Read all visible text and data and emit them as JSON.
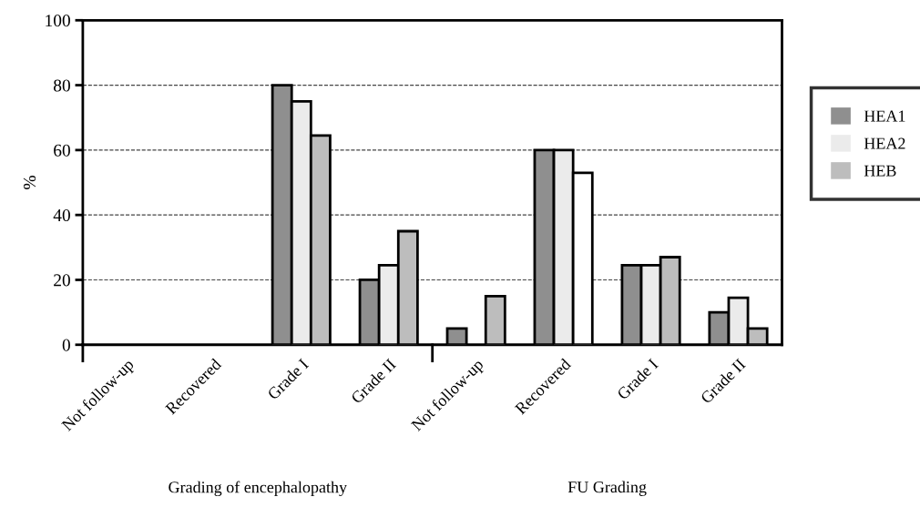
{
  "chart_data": {
    "type": "bar",
    "ylabel": "%",
    "categories": [
      "Not follow-up",
      "Recovered",
      "Grade I",
      "Grade II",
      "Not follow-up",
      "Recovered",
      "Grade I",
      "Grade II"
    ],
    "series": [
      {
        "name": "HEA1",
        "color": "#8f8f8f",
        "values": [
          0,
          0,
          80,
          20,
          5,
          60,
          24.5,
          10
        ]
      },
      {
        "name": "HEA2",
        "color": "#ebebeb",
        "values": [
          0,
          0,
          75,
          24.5,
          0,
          60,
          24.5,
          14.5
        ]
      },
      {
        "name": "HEB",
        "color": "#bdbdbd",
        "colors": [
          "#bdbdbd",
          "#bdbdbd",
          "#bdbdbd",
          "#bdbdbd",
          "#bdbdbd",
          "#ffffff",
          "#bdbdbd",
          "#bdbdbd"
        ],
        "values": [
          0,
          0,
          64.5,
          35,
          15,
          53,
          27,
          5
        ]
      }
    ],
    "ylim": [
      0,
      100
    ],
    "yticks": [
      0,
      20,
      40,
      60,
      80,
      100
    ],
    "grid": "y",
    "legend": "right",
    "annotations": [
      "Grading of encephalopathy",
      "FU Grading"
    ]
  }
}
